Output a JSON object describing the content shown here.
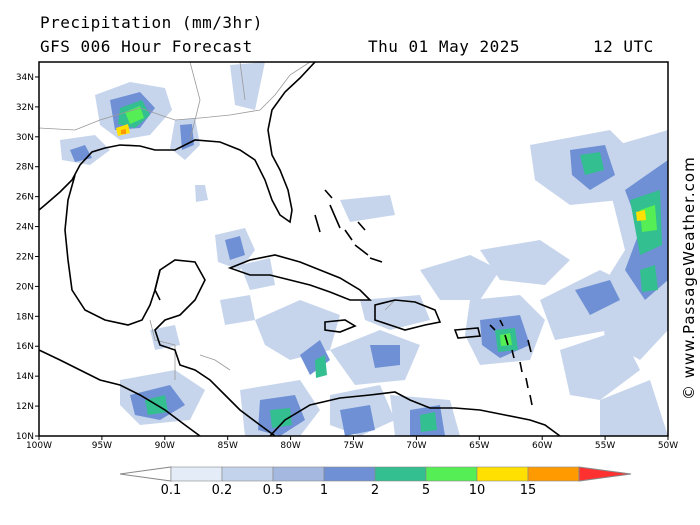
{
  "header": {
    "title": "Precipitation (mm/3hr)",
    "model": "GFS 006 Hour Forecast",
    "date": "Thu 01 May 2025",
    "time": "12 UTC"
  },
  "watermark": "© www.PassageWeather.com",
  "map": {
    "lon_range": [
      -100,
      -50
    ],
    "lat_range": [
      10,
      35
    ],
    "lat_ticks": [
      "10N",
      "12N",
      "14N",
      "16N",
      "18N",
      "20N",
      "22N",
      "24N",
      "26N",
      "28N",
      "30N",
      "32N",
      "34N"
    ],
    "lon_ticks": [
      "100W",
      "95W",
      "90W",
      "85W",
      "80W",
      "75W",
      "70W",
      "65W",
      "60W",
      "55W",
      "50W"
    ]
  },
  "legend": {
    "labels": [
      "0.1",
      "0.2",
      "0.5",
      "1",
      "2",
      "5",
      "10",
      "15"
    ],
    "colors": [
      "#ffffff",
      "#e4ecf7",
      "#c3d3eb",
      "#a5b9e0",
      "#6f90d4",
      "#33bf8f",
      "#55ee55",
      "#ffe000",
      "#ff9a00",
      "#ff3030"
    ]
  }
}
